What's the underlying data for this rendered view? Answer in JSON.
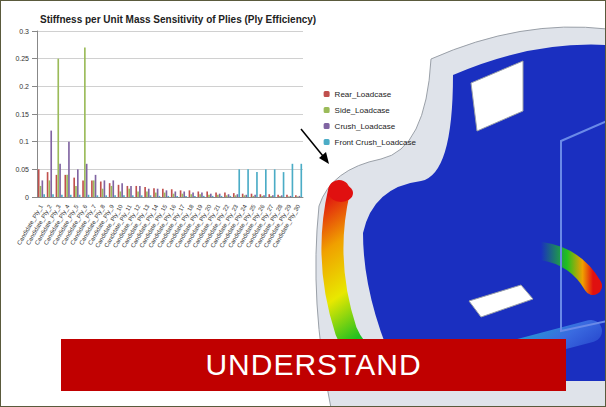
{
  "chart_data": {
    "type": "bar",
    "title": "Stiffness per Unit Mass Sensitivity of Plies (Ply Efficiency)",
    "categories": [
      "Candidate_Ply_1",
      "Candidate_Ply_2",
      "Candidate_Ply_3",
      "Candidate_Ply_4",
      "Candidate_Ply_5",
      "Candidate_Ply_6",
      "Candidate_Ply_7",
      "Candidate_Ply_8",
      "Candidate_Ply_9",
      "Candidate_Ply_10",
      "Candidate_Ply_11",
      "Candidate_Ply_12",
      "Candidate_Ply_13",
      "Candidate_Ply_14",
      "Candidate_Ply_15",
      "Candidate_Ply_16",
      "Candidate_Ply_17",
      "Candidate_Ply_18",
      "Candidate_Ply_19",
      "Candidate_Ply_20",
      "Candidate_Ply_21",
      "Candidate_Ply_22",
      "Candidate_Ply_23",
      "Candidate_Ply_24",
      "Candidate_Ply_25",
      "Candidate_Ply_26",
      "Candidate_Ply_27",
      "Candidate_Ply_28",
      "Candidate_Ply_29",
      "Candidate_Ply_30"
    ],
    "series": [
      {
        "name": "Rear_Loadcase",
        "color": "#c0504d",
        "values": [
          0.05,
          0.045,
          0.04,
          0.04,
          0.035,
          0.03,
          0.03,
          0.028,
          0.025,
          0.022,
          0.02,
          0.02,
          0.018,
          0.016,
          0.015,
          0.014,
          0.012,
          0.012,
          0.01,
          0.01,
          0.008,
          0.008,
          0.007,
          0.006,
          0.006,
          0.005,
          0.005,
          0.004,
          0.004,
          0.003
        ]
      },
      {
        "name": "Side_Loadcase",
        "color": "#9bbb59",
        "values": [
          0.02,
          0.03,
          0.25,
          0.04,
          0.02,
          0.27,
          0.03,
          0.015,
          0.02,
          0.01,
          0.015,
          0.01,
          0.01,
          0.008,
          0.008,
          0.006,
          0.006,
          0.005,
          0.005,
          0.004,
          0.004,
          0.003,
          0.003,
          0.003,
          0.002,
          0.002,
          0.002,
          0.002,
          0.001,
          0.001
        ]
      },
      {
        "name": "Crush_Loadcase",
        "color": "#8064a2",
        "values": [
          0.03,
          0.12,
          0.06,
          0.1,
          0.05,
          0.06,
          0.04,
          0.03,
          0.03,
          0.025,
          0.02,
          0.02,
          0.015,
          0.015,
          0.012,
          0.01,
          0.01,
          0.008,
          0.008,
          0.006,
          0.006,
          0.005,
          0.005,
          0.004,
          0.004,
          0.003,
          0.003,
          0.003,
          0.002,
          0.002
        ]
      },
      {
        "name": "Front Crush_Loadcase",
        "color": "#4bacc6",
        "values": [
          0.005,
          0.005,
          0.004,
          0.004,
          0.004,
          0.004,
          0.003,
          0.003,
          0.003,
          0.003,
          0.003,
          0.003,
          0.003,
          0.002,
          0.002,
          0.002,
          0.002,
          0.002,
          0.002,
          0.002,
          0.002,
          0.002,
          0.05,
          0.05,
          0.045,
          0.05,
          0.05,
          0.045,
          0.06,
          0.06
        ]
      }
    ],
    "ylim": [
      0,
      0.3
    ],
    "yticks": [
      0,
      0.05,
      0.1,
      0.15,
      0.2,
      0.25,
      0.3
    ],
    "grid": true,
    "legend": "right"
  },
  "banner": {
    "text": "UNDERSTAND"
  }
}
